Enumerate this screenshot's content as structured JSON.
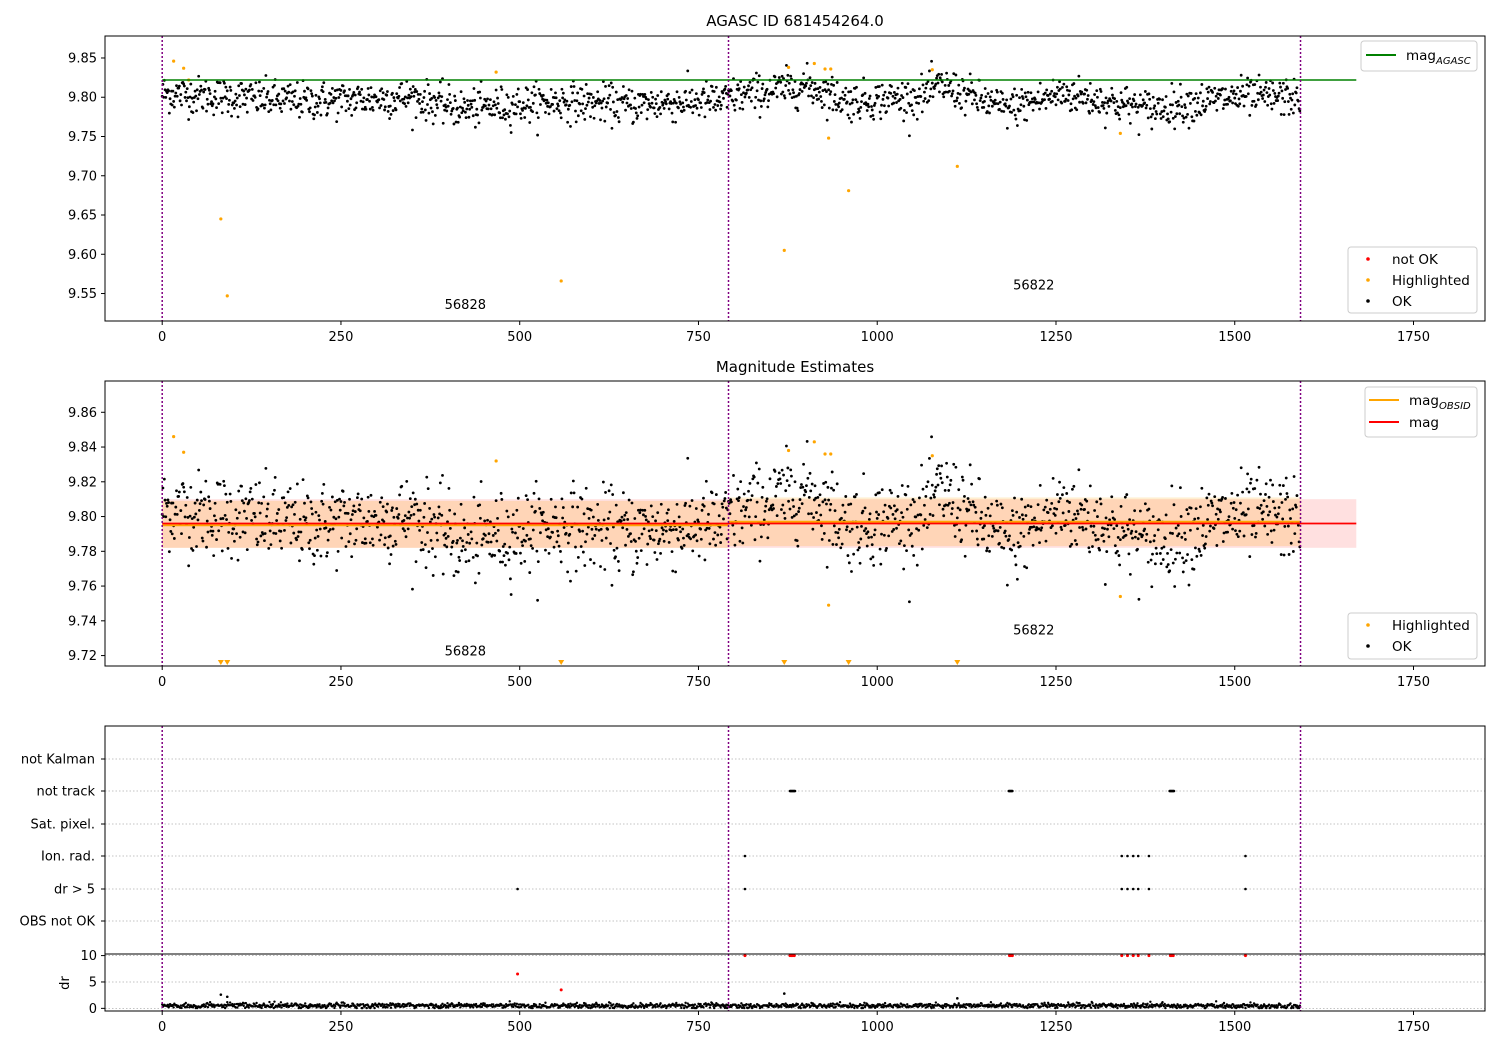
{
  "chart_data": [
    {
      "type": "scatter",
      "title": "AGASC ID 681454264.0",
      "xlim": [
        -80,
        1850
      ],
      "ylim": [
        9.515,
        9.878
      ],
      "x_ticks": [
        0,
        250,
        500,
        750,
        1000,
        1250,
        1500,
        1750
      ],
      "x_tick_labels": [
        "0",
        "250",
        "500",
        "750",
        "1000",
        "1250",
        "1500",
        "1750"
      ],
      "y_ticks": [
        9.55,
        9.6,
        9.65,
        9.7,
        9.75,
        9.8,
        9.85
      ],
      "y_tick_labels": [
        "9.55",
        "9.60",
        "9.65",
        "9.70",
        "9.75",
        "9.80",
        "9.85"
      ],
      "vlines": [
        0,
        792,
        1592
      ],
      "obsid_labels": [
        {
          "text": "56828",
          "x": 395,
          "y": 9.53
        },
        {
          "text": "56822",
          "x": 1190,
          "y": 9.555
        }
      ],
      "hlines": [
        {
          "name": "mag",
          "subscript": "AGASC",
          "y": 9.822,
          "x_range": [
            0,
            1670
          ],
          "color": "#008000"
        }
      ],
      "ok_points": {
        "name": "OK",
        "color": "#000000",
        "n": 1592,
        "segments": [
          {
            "x_range": [
              0,
              792
            ],
            "trend": [
              [
                0,
                9.805
              ],
              [
                100,
                9.8
              ],
              [
                200,
                9.795
              ],
              [
                350,
                9.8
              ],
              [
                420,
                9.785
              ],
              [
                560,
                9.795
              ],
              [
                650,
                9.79
              ],
              [
                750,
                9.795
              ],
              [
                792,
                9.795
              ]
            ]
          },
          {
            "x_range": [
              792,
              1592
            ],
            "trend": [
              [
                792,
                9.8
              ],
              [
                900,
                9.815
              ],
              [
                960,
                9.795
              ],
              [
                1060,
                9.8
              ],
              [
                1090,
                9.815
              ],
              [
                1180,
                9.785
              ],
              [
                1260,
                9.805
              ],
              [
                1380,
                9.785
              ],
              [
                1500,
                9.8
              ],
              [
                1592,
                9.8
              ]
            ]
          }
        ],
        "scatter_sd": 0.012
      },
      "highlighted_points": {
        "name": "Highlighted",
        "color": "#ffa500",
        "x": [
          16,
          30,
          37,
          82,
          91,
          467,
          558,
          870,
          876,
          912,
          927,
          932,
          935,
          960,
          1077,
          1112,
          1340
        ],
        "y": [
          9.846,
          9.837,
          9.822,
          9.645,
          9.547,
          9.832,
          9.566,
          9.605,
          9.838,
          9.843,
          9.836,
          9.748,
          9.836,
          9.681,
          9.835,
          9.712,
          9.754
        ]
      },
      "legend": [
        {
          "label": "mag",
          "subscript": "AGASC",
          "color": "#008000",
          "kind": "line",
          "placement": "top-right"
        },
        {
          "label": "not OK",
          "color": "#ff0000",
          "kind": "marker",
          "placement": "bottom-right"
        },
        {
          "label": "Highlighted",
          "color": "#ffa500",
          "kind": "marker",
          "placement": "bottom-right"
        },
        {
          "label": "OK",
          "color": "#000000",
          "kind": "marker",
          "placement": "bottom-right"
        }
      ]
    },
    {
      "type": "scatter",
      "title": "Magnitude Estimates",
      "xlim": [
        -80,
        1850
      ],
      "ylim": [
        9.714,
        9.878
      ],
      "x_ticks": [
        0,
        250,
        500,
        750,
        1000,
        1250,
        1500,
        1750
      ],
      "x_tick_labels": [
        "0",
        "250",
        "500",
        "750",
        "1000",
        "1250",
        "1500",
        "1750"
      ],
      "y_ticks": [
        9.72,
        9.74,
        9.76,
        9.78,
        9.8,
        9.82,
        9.84,
        9.86
      ],
      "y_tick_labels": [
        "9.72",
        "9.74",
        "9.76",
        "9.78",
        "9.80",
        "9.82",
        "9.84",
        "9.86"
      ],
      "vlines": [
        0,
        792,
        1592
      ],
      "obsid_labels": [
        {
          "text": "56828",
          "x": 395,
          "y": 9.72
        },
        {
          "text": "56822",
          "x": 1190,
          "y": 9.732
        }
      ],
      "mag_line": {
        "name": "mag",
        "color": "#ff0000",
        "y": 9.796,
        "band": [
          9.782,
          9.81
        ],
        "x_range": [
          0,
          1670
        ]
      },
      "mag_obsid": {
        "name": "mag",
        "subscript": "OBSID",
        "color": "#ffa500",
        "segments": [
          {
            "x_range": [
              0,
              792
            ],
            "y": 9.795,
            "band": [
              9.782,
              9.809
            ]
          },
          {
            "x_range": [
              792,
              1592
            ],
            "y": 9.797,
            "band": [
              9.783,
              9.811
            ]
          }
        ]
      },
      "highlighted_points": {
        "name": "Highlighted",
        "color": "#ffa500",
        "x": [
          16,
          30,
          467,
          876,
          912,
          927,
          932,
          935,
          1077,
          1340
        ],
        "y": [
          9.846,
          9.837,
          9.832,
          9.838,
          9.843,
          9.836,
          9.749,
          9.836,
          9.835,
          9.754
        ]
      },
      "clipped_markers": {
        "color": "#ffa500",
        "x": [
          82,
          91,
          558,
          870,
          960,
          1112
        ]
      },
      "legend": [
        {
          "label": "mag",
          "subscript": "OBSID",
          "color": "#ffa500",
          "kind": "line",
          "placement": "top-right"
        },
        {
          "label": "mag",
          "color": "#ff0000",
          "kind": "line",
          "placement": "top-right"
        },
        {
          "label": "Highlighted",
          "color": "#ffa500",
          "kind": "marker",
          "placement": "bottom-right"
        },
        {
          "label": "OK",
          "color": "#000000",
          "kind": "marker",
          "placement": "bottom-right"
        }
      ]
    },
    {
      "type": "scatter",
      "xlim": [
        -80,
        1850
      ],
      "x_ticks": [
        0,
        250,
        500,
        750,
        1000,
        1250,
        1500,
        1750
      ],
      "x_tick_labels": [
        "0",
        "250",
        "500",
        "750",
        "1000",
        "1250",
        "1500",
        "1750"
      ],
      "vlines": [
        0,
        792,
        1592
      ],
      "flag_rows": [
        "not Kalman",
        "not track",
        "Sat. pixel.",
        "Ion. rad.",
        "dr > 5",
        "OBS not OK"
      ],
      "flags": [
        {
          "row": "not track",
          "x": [
            878,
            879,
            880,
            881,
            882,
            883,
            884,
            885,
            1184,
            1185,
            1186,
            1187,
            1188,
            1189,
            1409,
            1410,
            1411,
            1412,
            1413,
            1414,
            1415
          ]
        },
        {
          "row": "Ion. rad.",
          "x": [
            815,
            1342,
            1350,
            1358,
            1365,
            1380,
            1515
          ]
        },
        {
          "row": "dr > 5",
          "x": [
            497,
            815,
            1342,
            1350,
            1358,
            1365,
            1380,
            1515
          ]
        }
      ],
      "dr": {
        "ylabel": "dr",
        "ylim": [
          -0.5,
          10.3
        ],
        "y_ticks": [
          0,
          5,
          10
        ],
        "y_tick_labels": [
          "0",
          "5",
          "10"
        ],
        "typical": 0.5,
        "outliers_ok": {
          "x": [
            82,
            91,
            870,
            1112
          ],
          "y": [
            2.6,
            2.2,
            2.8,
            1.9
          ]
        },
        "outliers_not_ok": {
          "color": "#ff0000",
          "x": [
            497,
            558,
            815,
            878,
            880,
            882,
            884,
            1185,
            1187,
            1189,
            1342,
            1350,
            1358,
            1365,
            1380,
            1410,
            1412,
            1414,
            1515
          ],
          "y": [
            6.5,
            3.5,
            10,
            10,
            10,
            10,
            10,
            10,
            10,
            10,
            10,
            10,
            10,
            10,
            10,
            10,
            10,
            10,
            10
          ]
        }
      }
    }
  ]
}
